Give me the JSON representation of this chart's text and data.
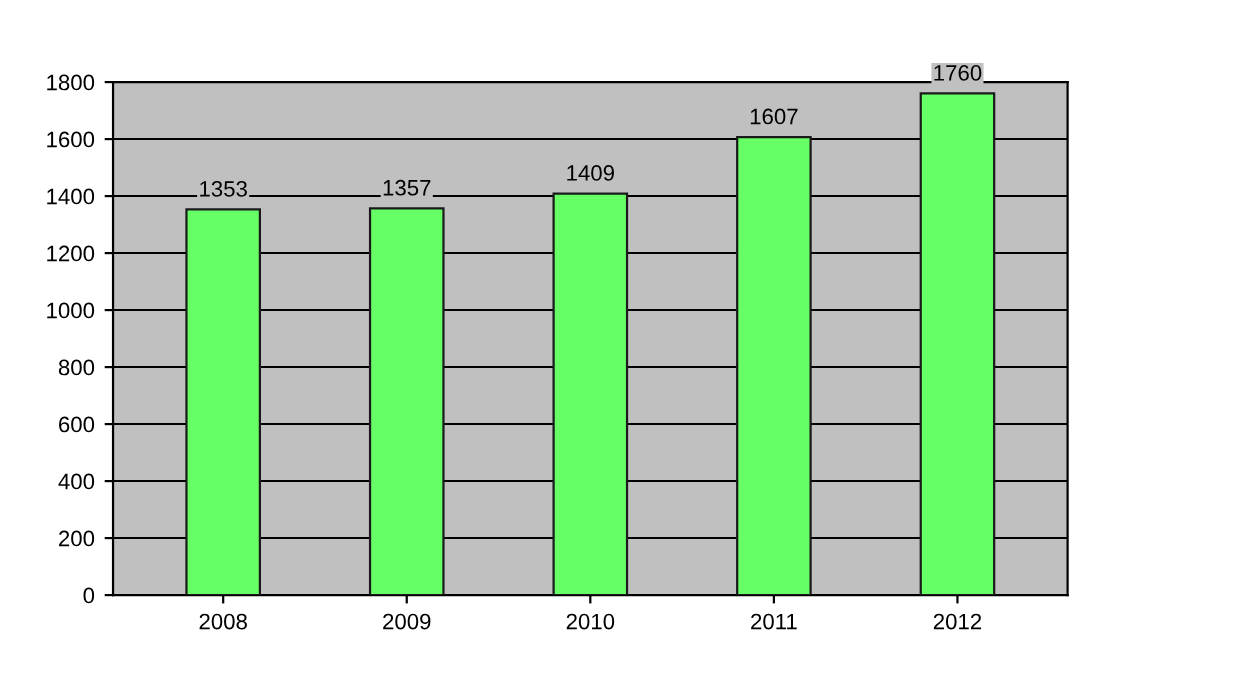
{
  "chart_data": {
    "type": "bar",
    "categories": [
      "2008",
      "2009",
      "2010",
      "2011",
      "2012"
    ],
    "values": [
      1353,
      1357,
      1409,
      1607,
      1760
    ],
    "color": "#66ff66",
    "ylim": [
      0,
      1800
    ],
    "yticks": [
      0,
      200,
      400,
      600,
      800,
      1000,
      1200,
      1400,
      1600,
      1800
    ],
    "grid": "y",
    "data_labels": true,
    "legend": false
  }
}
